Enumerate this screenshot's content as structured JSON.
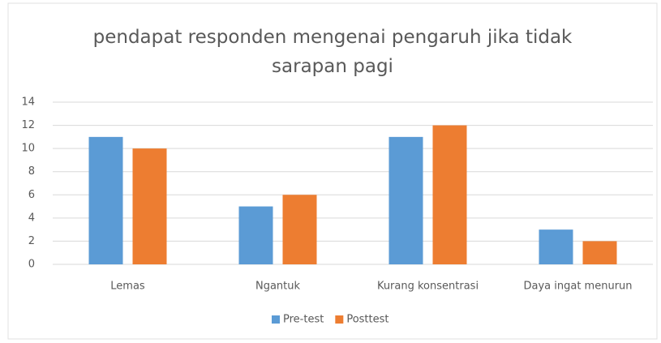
{
  "chart_data": {
    "type": "bar",
    "title": "pendapat responden mengenai pengaruh jika tidak sarapan pagi",
    "categories": [
      "Lemas",
      "Ngantuk",
      "Kurang konsentrasi",
      "Daya ingat menurun"
    ],
    "series": [
      {
        "name": "Pre-test",
        "color": "#5b9bd5",
        "values": [
          11,
          5,
          11,
          3
        ]
      },
      {
        "name": "Posttest",
        "color": "#ed7d31",
        "values": [
          10,
          6,
          12,
          2
        ]
      }
    ],
    "ylim": [
      0,
      14
    ],
    "yticks": [
      0,
      2,
      4,
      6,
      8,
      10,
      12,
      14
    ],
    "grid": true,
    "legend": "bottom"
  }
}
